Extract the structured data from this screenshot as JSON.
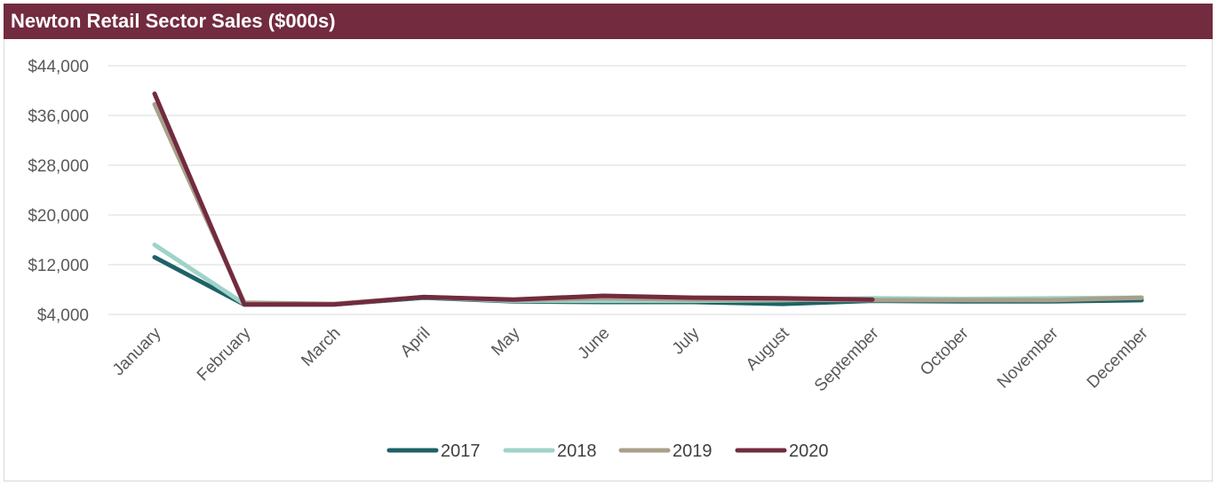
{
  "chart_data": {
    "type": "line",
    "title": "Newton Retail Sector Sales ($000s)",
    "xlabel": "",
    "ylabel": "",
    "ylim": [
      4000,
      44000
    ],
    "yticks": [
      4000,
      12000,
      20000,
      28000,
      36000,
      44000
    ],
    "ytick_labels": [
      "$4,000",
      "$12,000",
      "$20,000",
      "$28,000",
      "$36,000",
      "$44,000"
    ],
    "grid": true,
    "legend_position": "bottom",
    "categories": [
      "January",
      "February",
      "March",
      "April",
      "May",
      "June",
      "July",
      "August",
      "September",
      "October",
      "November",
      "December"
    ],
    "series": [
      {
        "name": "2017",
        "color": "#1e6266",
        "values": [
          13200,
          5600,
          5600,
          6700,
          6100,
          6000,
          6000,
          5700,
          6200,
          6100,
          6100,
          6300
        ]
      },
      {
        "name": "2018",
        "color": "#9fd3c9",
        "values": [
          15200,
          5700,
          5600,
          6800,
          6200,
          6200,
          6200,
          6300,
          6600,
          6500,
          6600,
          6700
        ]
      },
      {
        "name": "2019",
        "color": "#a8a08a",
        "values": [
          37800,
          5900,
          5700,
          6800,
          6300,
          6600,
          6400,
          6400,
          6300,
          6300,
          6300,
          6700
        ]
      },
      {
        "name": "2020",
        "color": "#722b3f",
        "values": [
          39500,
          5600,
          5600,
          6800,
          6400,
          7000,
          6700,
          6600,
          6400,
          null,
          null,
          null
        ]
      }
    ]
  }
}
